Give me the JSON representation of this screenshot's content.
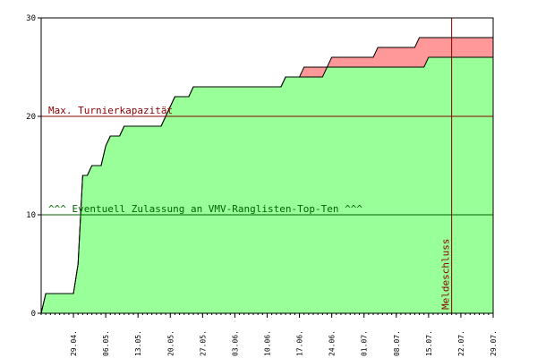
{
  "chart_data": {
    "type": "area",
    "title": "",
    "xlabel": "",
    "ylabel": "",
    "ylim": [
      0,
      30
    ],
    "yticks": [
      0,
      10,
      20,
      30
    ],
    "xlim": [
      "2024-04-22",
      "2024-07-29"
    ],
    "xtick_dates": [
      "2024-04-29",
      "2024-05-06",
      "2024-05-13",
      "2024-05-20",
      "2024-05-27",
      "2024-06-03",
      "2024-06-10",
      "2024-06-17",
      "2024-06-24",
      "2024-07-01",
      "2024-07-08",
      "2024-07-15",
      "2024-07-22",
      "2024-07-29"
    ],
    "xtick_labels": [
      "29.04.",
      "06.05.",
      "13.05.",
      "20.05.",
      "27.05.",
      "03.06.",
      "10.06.",
      "17.06.",
      "24.06.",
      "01.07.",
      "08.07.",
      "15.07.",
      "22.07.",
      "29.07."
    ],
    "grid": false,
    "series": [
      {
        "color": "#99ff99",
        "points": [
          [
            "2024-04-22",
            0
          ],
          [
            "2024-04-23",
            2
          ],
          [
            "2024-04-29",
            2
          ],
          [
            "2024-04-30",
            5
          ],
          [
            "2024-05-01",
            14
          ],
          [
            "2024-05-02",
            14
          ],
          [
            "2024-05-03",
            15
          ],
          [
            "2024-05-05",
            15
          ],
          [
            "2024-05-06",
            17
          ],
          [
            "2024-05-07",
            18
          ],
          [
            "2024-05-09",
            18
          ],
          [
            "2024-05-10",
            19
          ],
          [
            "2024-05-18",
            19
          ],
          [
            "2024-05-21",
            22
          ],
          [
            "2024-05-24",
            22
          ],
          [
            "2024-05-25",
            23
          ],
          [
            "2024-06-13",
            23
          ],
          [
            "2024-06-14",
            24
          ],
          [
            "2024-06-22",
            24
          ],
          [
            "2024-06-23",
            25
          ],
          [
            "2024-07-14",
            25
          ],
          [
            "2024-07-15",
            26
          ],
          [
            "2024-07-29",
            26
          ]
        ]
      },
      {
        "color": "#ff9999",
        "points": [
          [
            "2024-04-22",
            0
          ],
          [
            "2024-04-23",
            2
          ],
          [
            "2024-04-29",
            2
          ],
          [
            "2024-04-30",
            5
          ],
          [
            "2024-05-01",
            14
          ],
          [
            "2024-05-02",
            14
          ],
          [
            "2024-05-03",
            15
          ],
          [
            "2024-05-05",
            15
          ],
          [
            "2024-05-06",
            17
          ],
          [
            "2024-05-07",
            18
          ],
          [
            "2024-05-09",
            18
          ],
          [
            "2024-05-10",
            19
          ],
          [
            "2024-05-18",
            19
          ],
          [
            "2024-05-21",
            22
          ],
          [
            "2024-05-24",
            22
          ],
          [
            "2024-05-25",
            23
          ],
          [
            "2024-06-13",
            23
          ],
          [
            "2024-06-14",
            24
          ],
          [
            "2024-06-17",
            24
          ],
          [
            "2024-06-18",
            25
          ],
          [
            "2024-06-23",
            25
          ],
          [
            "2024-06-24",
            26
          ],
          [
            "2024-07-03",
            26
          ],
          [
            "2024-07-04",
            27
          ],
          [
            "2024-07-12",
            27
          ],
          [
            "2024-07-13",
            28
          ],
          [
            "2024-07-29",
            28
          ]
        ]
      }
    ],
    "annotations": [
      {
        "kind": "hline",
        "y": 20,
        "label": "Max. Turnierkapazität",
        "color": "#8b0000"
      },
      {
        "kind": "hline",
        "y": 10,
        "label": "^^^ Eventuell Zulassung an VMV-Ranglisten-Top-Ten ^^^",
        "color": "#006400"
      },
      {
        "kind": "vline",
        "x": "2024-07-20",
        "label": "Meldeschluss",
        "color": "#8b0000"
      }
    ]
  }
}
